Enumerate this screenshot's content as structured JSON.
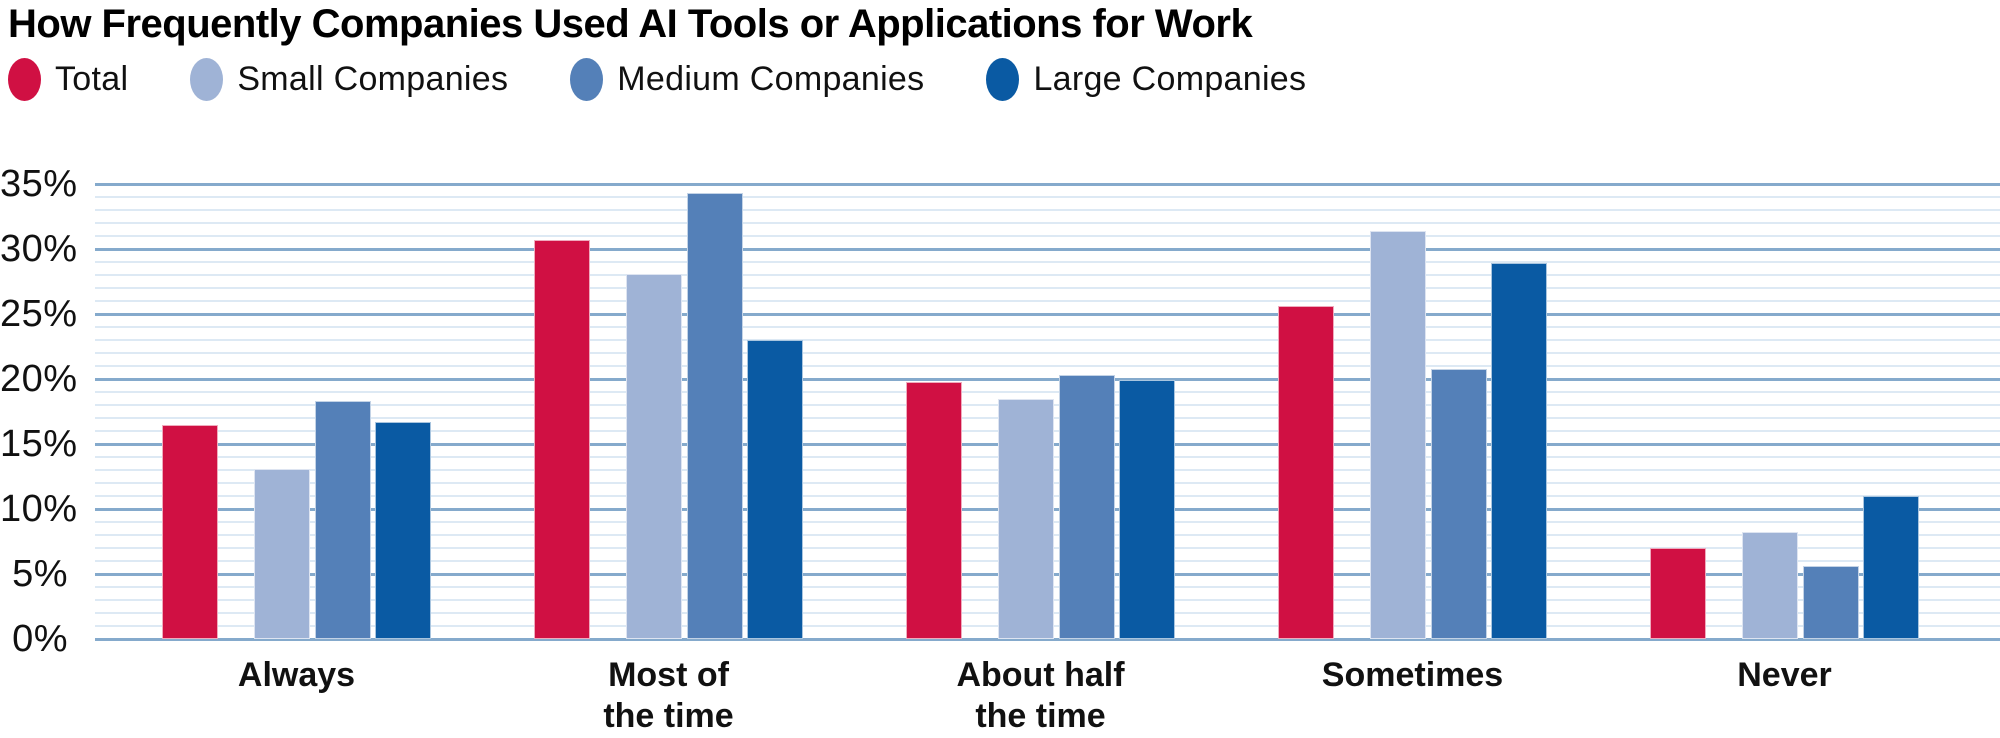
{
  "title": "How Frequently Companies Used AI Tools or Applications for Work",
  "chart_data": {
    "type": "bar",
    "title": "How Frequently Companies Used AI Tools or Applications for Work",
    "categories": [
      {
        "label": "Always",
        "lines": [
          "Always"
        ]
      },
      {
        "label": "Most of the time",
        "lines": [
          "Most of",
          "the time"
        ]
      },
      {
        "label": "About half the time",
        "lines": [
          "About half",
          "the time"
        ]
      },
      {
        "label": "Sometimes",
        "lines": [
          "Sometimes"
        ]
      },
      {
        "label": "Never",
        "lines": [
          "Never"
        ]
      }
    ],
    "series": [
      {
        "name": "Total",
        "color": "#d01043",
        "values": [
          16.5,
          30.7,
          19.8,
          25.6,
          7.0
        ]
      },
      {
        "name": "Small Companies",
        "color": "#9fb3d6",
        "values": [
          13.1,
          28.1,
          18.5,
          31.4,
          8.2
        ]
      },
      {
        "name": "Medium Companies",
        "color": "#5480b8",
        "values": [
          18.3,
          34.3,
          20.3,
          20.8,
          5.6
        ]
      },
      {
        "name": "Large Companies",
        "color": "#0a5aa3",
        "values": [
          16.7,
          23.0,
          19.9,
          28.9,
          11.0
        ]
      }
    ],
    "xlabel": "",
    "ylabel": "",
    "ylim": [
      0,
      35
    ],
    "y_tick_labels": [
      "0%",
      "5%",
      "10%",
      "15%",
      "20%",
      "25%",
      "30%",
      "35%"
    ],
    "y_major_step": 5,
    "y_minor_step": 1,
    "grid": "horizontal-major-and-minor",
    "legend_position": "top-left",
    "unit": "percent"
  },
  "colors": {
    "grid_major": "#85aacc",
    "grid_minor": "#dde9f4",
    "text": "#111111",
    "title_text": "#000000",
    "background": "#ffffff"
  }
}
